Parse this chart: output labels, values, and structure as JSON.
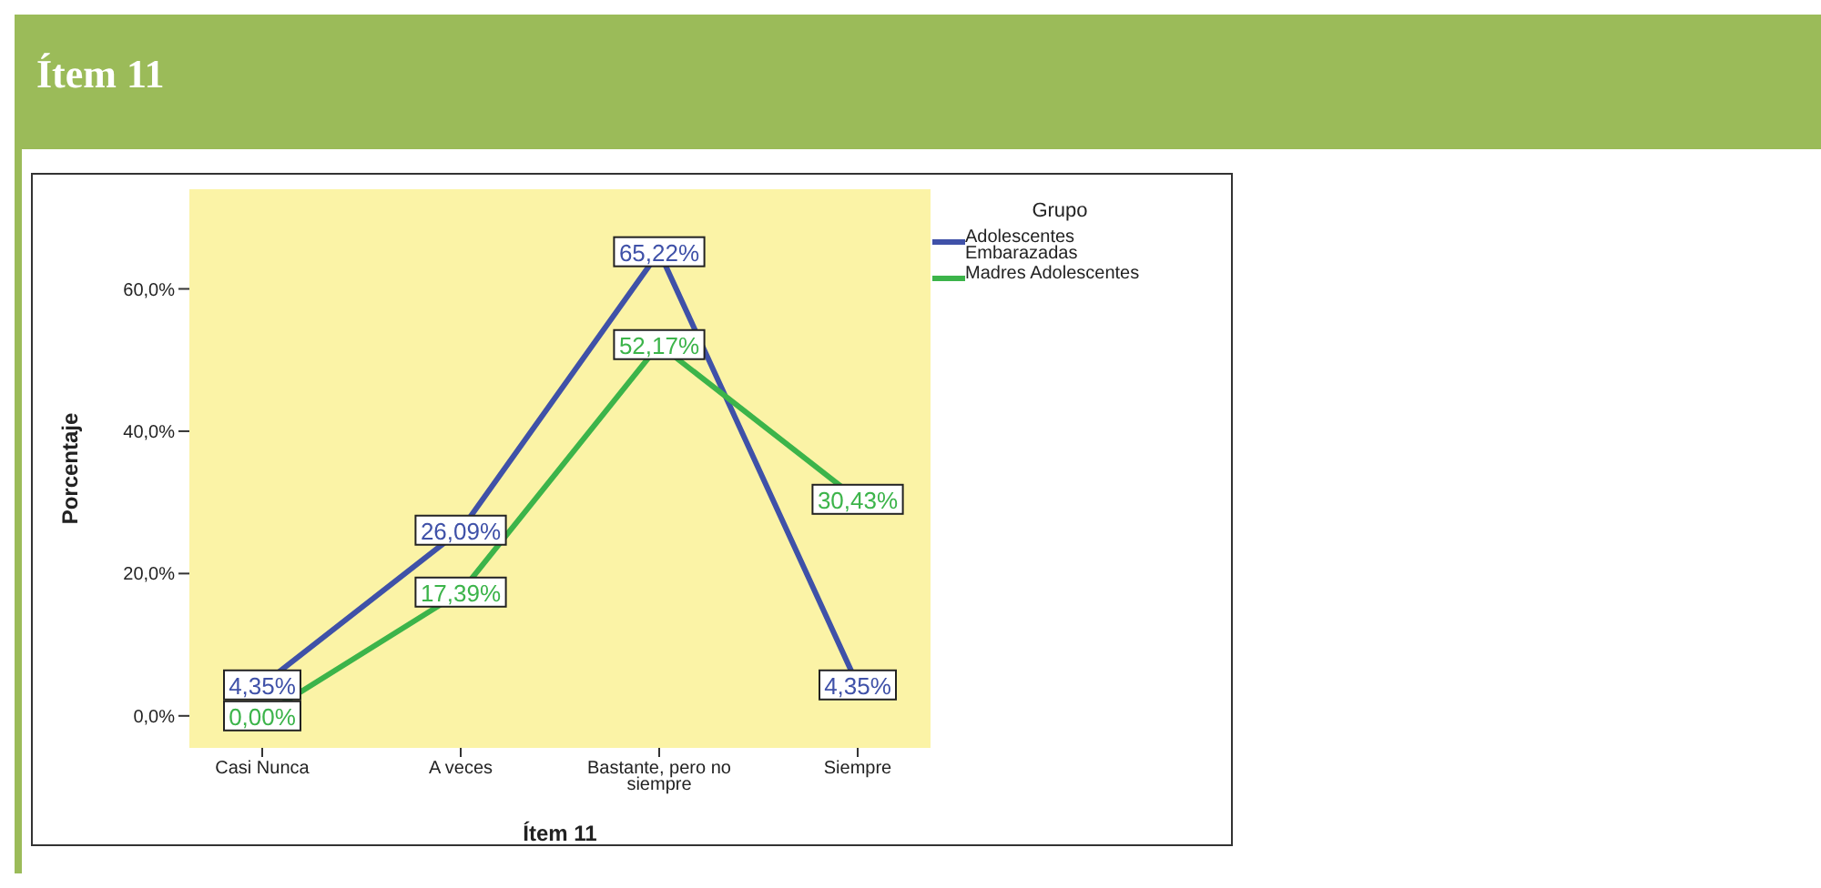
{
  "chart_data": {
    "type": "line",
    "title": "Ítem 11",
    "xlabel": "Ítem 11",
    "ylabel": "Porcentaje",
    "legend_title": "Grupo",
    "categories": [
      "Casi Nunca",
      "A veces",
      "Bastante, pero no siempre",
      "Siempre"
    ],
    "series": [
      {
        "name": "Adolescentes Embarazadas",
        "color": "#3f51a8",
        "values": [
          4.35,
          26.09,
          65.22,
          4.35
        ],
        "value_labels": [
          "4,35%",
          "26,09%",
          "65,22%",
          "4,35%"
        ]
      },
      {
        "name": "Madres Adolescentes",
        "color": "#3cb44a",
        "values": [
          0,
          17.39,
          52.17,
          30.43
        ],
        "value_labels": [
          "0,00%",
          "17,39%",
          "52,17%",
          "30,43%"
        ]
      }
    ],
    "ylim": [
      -4.5,
      74
    ],
    "yticks": [
      {
        "value": 0,
        "label": "0,0%"
      },
      {
        "value": 20,
        "label": "20,0%"
      },
      {
        "value": 40,
        "label": "40,0%"
      },
      {
        "value": 60,
        "label": "60,0%"
      }
    ],
    "grid": false,
    "legend": "top right",
    "line_style": "solid"
  }
}
